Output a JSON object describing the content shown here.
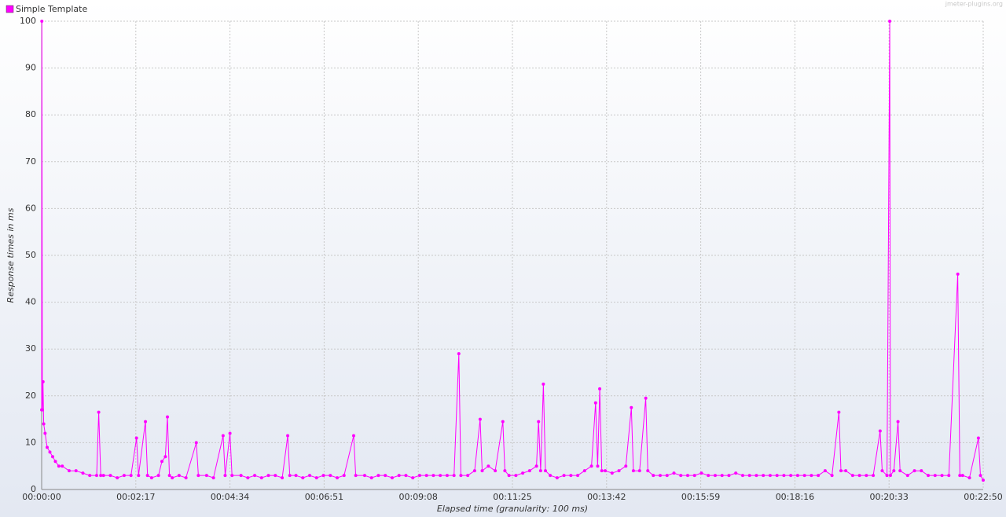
{
  "chart_data": {
    "type": "line",
    "watermark": "jmeter-plugins.org",
    "xlabel": "Elapsed time (granularity: 100 ms)",
    "ylabel": "Response times in ms",
    "xlim": [
      0,
      1370
    ],
    "ylim": [
      0,
      100
    ],
    "xticks": [
      {
        "value": 0,
        "label": "00:00:00"
      },
      {
        "value": 137,
        "label": "00:02:17"
      },
      {
        "value": 274,
        "label": "00:04:34"
      },
      {
        "value": 411,
        "label": "00:06:51"
      },
      {
        "value": 548,
        "label": "00:09:08"
      },
      {
        "value": 685,
        "label": "00:11:25"
      },
      {
        "value": 822,
        "label": "00:13:42"
      },
      {
        "value": 959,
        "label": "00:15:59"
      },
      {
        "value": 1096,
        "label": "00:18:16"
      },
      {
        "value": 1233,
        "label": "00:20:33"
      },
      {
        "value": 1370,
        "label": "00:22:50"
      }
    ],
    "yticks": [
      0,
      10,
      20,
      30,
      40,
      50,
      60,
      70,
      80,
      90,
      100
    ],
    "grid": true,
    "legend": "top-left",
    "x": [
      0,
      0.3,
      1,
      2,
      3,
      5,
      8,
      12,
      16,
      20,
      25,
      30,
      40,
      50,
      60,
      70,
      80,
      83,
      86,
      90,
      100,
      110,
      120,
      130,
      138,
      141,
      151,
      154,
      160,
      170,
      175,
      180,
      183,
      186,
      190,
      200,
      210,
      225,
      228,
      240,
      250,
      264,
      267,
      274,
      277,
      290,
      300,
      310,
      320,
      330,
      340,
      350,
      358,
      361,
      370,
      380,
      390,
      400,
      410,
      420,
      430,
      440,
      454,
      457,
      470,
      480,
      490,
      500,
      510,
      520,
      530,
      540,
      550,
      560,
      570,
      580,
      590,
      600,
      607,
      610,
      620,
      630,
      638,
      641,
      650,
      660,
      671,
      674,
      680,
      690,
      700,
      710,
      720,
      723,
      726,
      730,
      733,
      740,
      750,
      760,
      770,
      780,
      790,
      800,
      806,
      809,
      812,
      815,
      820,
      830,
      840,
      850,
      858,
      861,
      870,
      879,
      882,
      890,
      900,
      910,
      920,
      930,
      940,
      950,
      960,
      970,
      980,
      990,
      1000,
      1010,
      1020,
      1030,
      1040,
      1050,
      1060,
      1070,
      1080,
      1090,
      1100,
      1110,
      1120,
      1130,
      1140,
      1150,
      1160,
      1163,
      1170,
      1180,
      1190,
      1200,
      1210,
      1220,
      1223,
      1230,
      1234,
      1235,
      1240,
      1246,
      1249,
      1260,
      1270,
      1280,
      1290,
      1300,
      1310,
      1320,
      1333,
      1336,
      1340,
      1350,
      1363,
      1366,
      1370
    ],
    "series": [
      {
        "name": "Simple Template",
        "color": "#ff00ff",
        "values": [
          17,
          100,
          17,
          23,
          14,
          12,
          9,
          8,
          7,
          6,
          5,
          5,
          4,
          4,
          3.5,
          3,
          3,
          16.5,
          3,
          3,
          3,
          2.5,
          3,
          3,
          11,
          3,
          14.5,
          3,
          2.5,
          3,
          6,
          7,
          15.5,
          3,
          2.5,
          3,
          2.5,
          10,
          3,
          3,
          2.5,
          11.5,
          3,
          12,
          3,
          3,
          2.5,
          3,
          2.5,
          3,
          3,
          2.5,
          11.5,
          3,
          3,
          2.5,
          3,
          2.5,
          3,
          3,
          2.5,
          3,
          11.5,
          3,
          3,
          2.5,
          3,
          3,
          2.5,
          3,
          3,
          2.5,
          3,
          3,
          3,
          3,
          3,
          3,
          29,
          3,
          3,
          4,
          15,
          4,
          5,
          4,
          14.5,
          4,
          3,
          3,
          3.5,
          4,
          5,
          14.5,
          4,
          22.5,
          4,
          3,
          2.5,
          3,
          3,
          3,
          4,
          5,
          18.5,
          5,
          21.5,
          4,
          4,
          3.5,
          4,
          5,
          17.5,
          4,
          4,
          19.5,
          4,
          3,
          3,
          3,
          3.5,
          3,
          3,
          3,
          3.5,
          3,
          3,
          3,
          3,
          3.5,
          3,
          3,
          3,
          3,
          3,
          3,
          3,
          3,
          3,
          3,
          3,
          3,
          4,
          3,
          16.5,
          4,
          4,
          3,
          3,
          3,
          3,
          12.5,
          4,
          3,
          100,
          3,
          4,
          14.5,
          4,
          3,
          4,
          4,
          3,
          3,
          3,
          3,
          46,
          3,
          3,
          2.5,
          11,
          3,
          2
        ]
      }
    ]
  }
}
